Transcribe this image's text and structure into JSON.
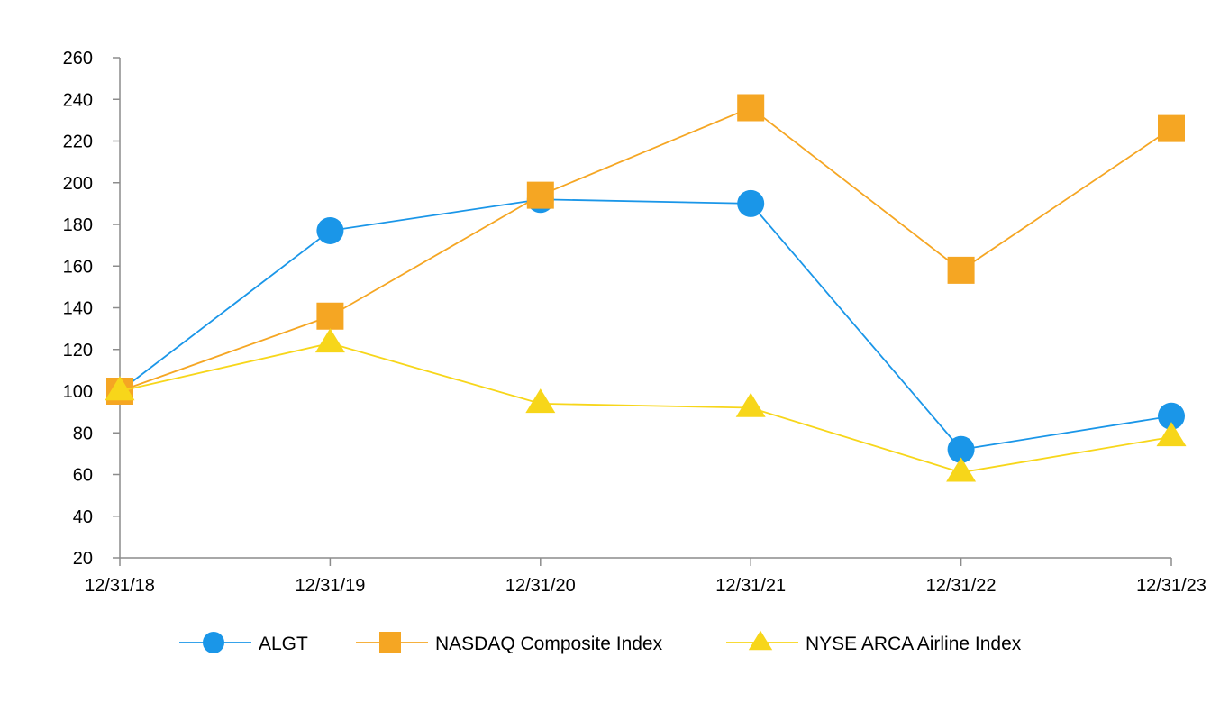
{
  "chart_data": {
    "type": "line",
    "title": "",
    "xlabel": "",
    "ylabel": "",
    "categories": [
      "12/31/18",
      "12/31/19",
      "12/31/20",
      "12/31/21",
      "12/31/22",
      "12/31/23"
    ],
    "ylim": [
      20,
      260
    ],
    "yticks": [
      20,
      40,
      60,
      80,
      100,
      120,
      140,
      160,
      180,
      200,
      220,
      240,
      260
    ],
    "grid": false,
    "legend_position": "bottom",
    "series": [
      {
        "name": "ALGT",
        "values": [
          100,
          177,
          192,
          190,
          72,
          88
        ],
        "color": "#1a96e8",
        "marker": "circle"
      },
      {
        "name": "NASDAQ Composite Index",
        "values": [
          100,
          136,
          194,
          236,
          158,
          226
        ],
        "color": "#f5a623",
        "marker": "square"
      },
      {
        "name": "NYSE ARCA Airline Index",
        "values": [
          100,
          123,
          94,
          92,
          61,
          78
        ],
        "color": "#f7d61a",
        "marker": "triangle"
      }
    ]
  }
}
